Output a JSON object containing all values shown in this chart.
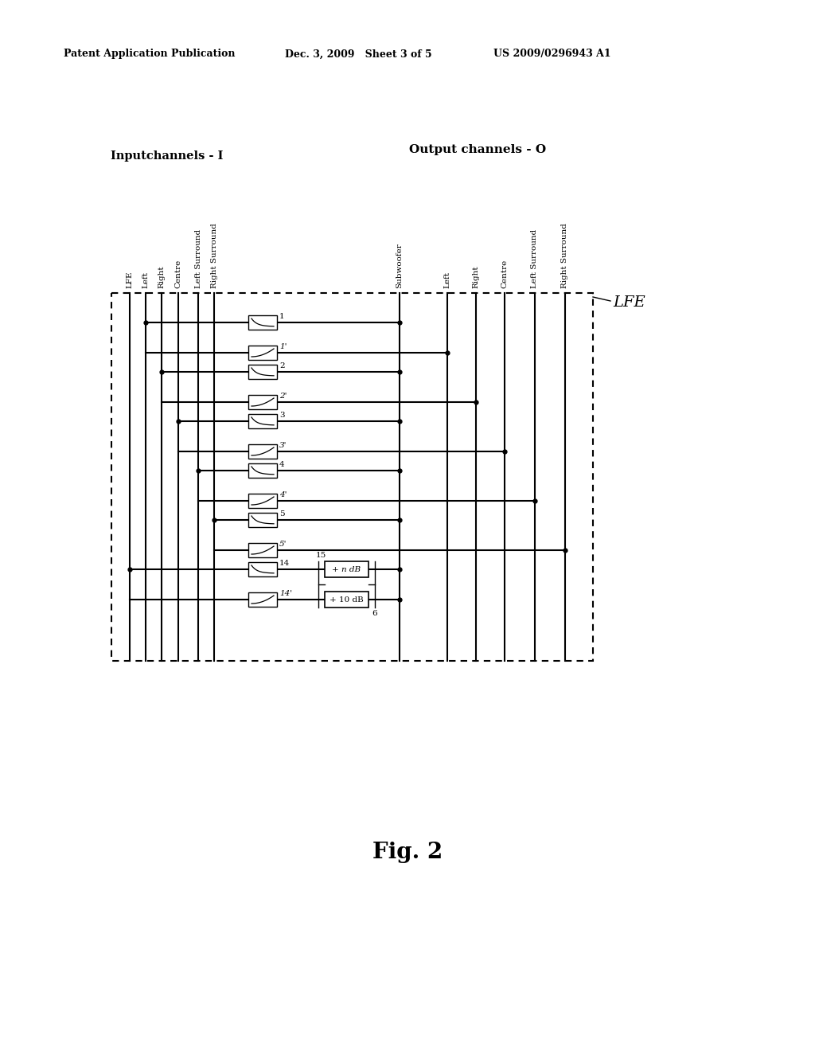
{
  "bg_color": "#ffffff",
  "header_left": "Patent Application Publication",
  "header_mid": "Dec. 3, 2009   Sheet 3 of 5",
  "header_right": "US 2009/0296943 A1",
  "input_label": "Inputchannels - I",
  "output_label": "Output channels - O",
  "input_channels": [
    "LFE",
    "Left",
    "Right",
    "Centre",
    "Left Surround",
    "Right Surround"
  ],
  "output_channels": [
    "Subwoofer",
    "Left",
    "Right",
    "Centre",
    "Left Surround",
    "Right Surround"
  ],
  "fig_label": "Fig. 2",
  "lfe_label": "LFE",
  "filter_pairs": [
    [
      "1",
      "1'"
    ],
    [
      "2",
      "2'"
    ],
    [
      "3",
      "3'"
    ],
    [
      "4",
      "4'"
    ],
    [
      "5",
      "5'"
    ],
    [
      "14",
      "14'"
    ]
  ],
  "gain_labels": [
    "+ n dB",
    "+ 10 dB"
  ],
  "brace_labels": [
    "15",
    "6"
  ]
}
